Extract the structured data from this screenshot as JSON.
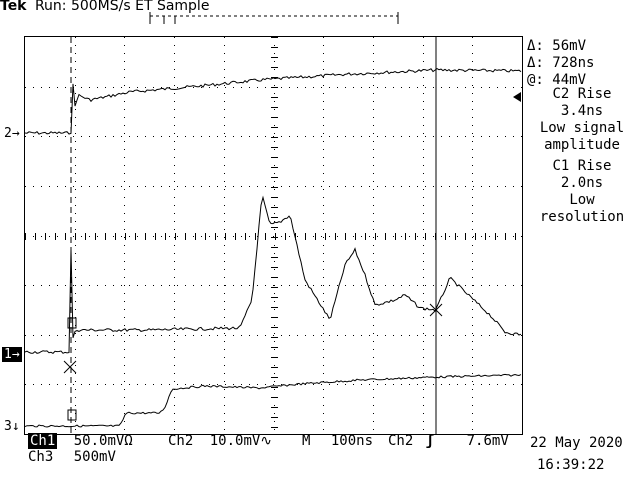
{
  "header": {
    "brand": "Tek",
    "status": "Run: 500MS/s ET Sample"
  },
  "cursor_readout": {
    "delta_v": "Δ: 56mV",
    "delta_t": "Δ: 728ns",
    "at_v": "@: 44mV"
  },
  "measurements": [
    {
      "line1": "C2 Rise",
      "line2": "3.4ns",
      "line3": "Low signal",
      "line4": "amplitude"
    },
    {
      "line1": "C1 Rise",
      "line2": "2.0ns",
      "line3": "Low",
      "line4": "resolution"
    }
  ],
  "channel_markers": {
    "ch1": "1→",
    "ch2": "2→",
    "ch3": "3↓"
  },
  "footer": {
    "ch1_label": "Ch1",
    "ch1_scale": "50.0mVΩ",
    "ch2_label": "Ch2",
    "ch2_scale": "10.0mV∿",
    "timebase_label": "M",
    "timebase": "100ns",
    "trigger_source": "Ch2",
    "trigger_slope": "ʃ",
    "trigger_level": "7.6mV",
    "ch3_label": "Ch3",
    "ch3_scale": "500mV",
    "date": "22 May 2020",
    "time": "16:39:22"
  }
}
